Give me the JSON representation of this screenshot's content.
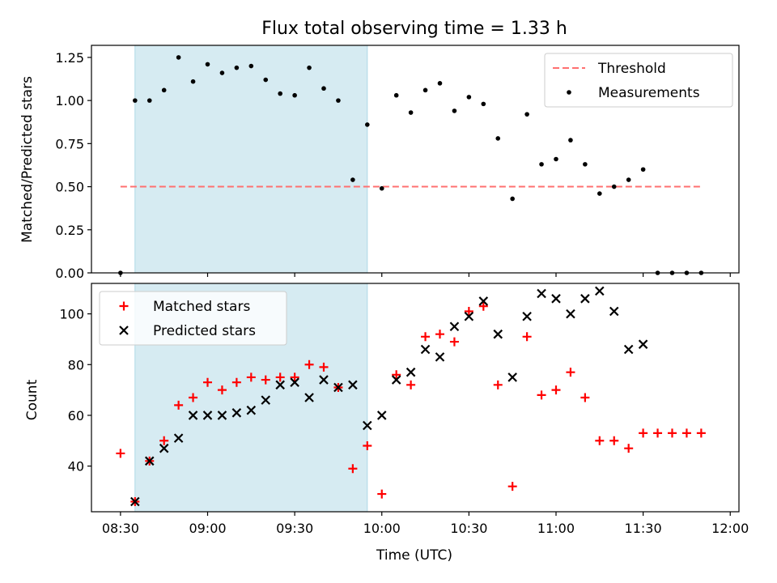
{
  "chart_data": {
    "title": "Flux total observing time = 1.33 h",
    "xlabel": "Time (UTC)",
    "x_tick_labels": [
      "08:30",
      "09:00",
      "09:30",
      "10:00",
      "10:30",
      "11:00",
      "11:30",
      "12:00"
    ],
    "x_ticks_minutes": [
      510,
      540,
      570,
      600,
      630,
      660,
      690,
      720
    ],
    "xlim_minutes": [
      500,
      723
    ],
    "x_unit": "minutes after 00:00 UTC",
    "shaded_span": {
      "start": "08:35",
      "end": "09:55",
      "start_minutes": 515,
      "end_minutes": 595,
      "color": "#add8e6"
    },
    "panels": [
      {
        "type": "scatter",
        "ylabel": "Matched/Predicted stars",
        "ylim": [
          0,
          1.32
        ],
        "y_ticks": [
          "0.00",
          "0.25",
          "0.50",
          "0.75",
          "1.00",
          "1.25"
        ],
        "legend_position": "top-right",
        "threshold": {
          "name": "Threshold",
          "value": 0.5,
          "x_start_minutes": 510,
          "x_end_minutes": 710,
          "color": "#ff7070"
        },
        "series": [
          {
            "name": "Measurements",
            "marker": "dot",
            "color": "#000000",
            "x": [
              510,
              515,
              520,
              525,
              530,
              535,
              540,
              545,
              550,
              555,
              560,
              565,
              570,
              575,
              580,
              585,
              590,
              595,
              600,
              605,
              610,
              615,
              620,
              625,
              630,
              635,
              640,
              645,
              650,
              655,
              660,
              665,
              670,
              675,
              680,
              685,
              690,
              695,
              700,
              705,
              710
            ],
            "y": [
              0.0,
              1.0,
              1.0,
              1.06,
              1.25,
              1.11,
              1.21,
              1.16,
              1.19,
              1.2,
              1.12,
              1.04,
              1.03,
              1.19,
              1.07,
              1.0,
              0.54,
              0.86,
              0.49,
              1.03,
              0.93,
              1.06,
              1.1,
              0.94,
              1.02,
              0.98,
              0.78,
              0.43,
              0.92,
              0.63,
              0.66,
              0.77,
              0.63,
              0.46,
              0.5,
              0.54,
              0.6,
              0.0,
              0.0,
              0.0,
              0.0
            ]
          }
        ]
      },
      {
        "type": "scatter",
        "ylabel": "Count",
        "ylim": [
          22,
          112
        ],
        "y_ticks": [
          "40",
          "60",
          "80",
          "100"
        ],
        "legend_position": "top-left",
        "series": [
          {
            "name": "Matched stars",
            "marker": "plus",
            "color": "#ff0000",
            "x": [
              510,
              515,
              520,
              525,
              530,
              535,
              540,
              545,
              550,
              555,
              560,
              565,
              570,
              575,
              580,
              585,
              590,
              595,
              600,
              605,
              610,
              615,
              620,
              625,
              630,
              635,
              640,
              645,
              650,
              655,
              660,
              665,
              670,
              675,
              680,
              685,
              690,
              695,
              700,
              705,
              710
            ],
            "y": [
              45,
              26,
              42,
              50,
              64,
              67,
              73,
              70,
              73,
              75,
              74,
              75,
              75,
              80,
              79,
              71,
              39,
              48,
              29,
              76,
              72,
              91,
              92,
              89,
              101,
              103,
              72,
              32,
              91,
              68,
              70,
              77,
              67,
              50,
              50,
              47,
              53,
              53,
              53,
              53,
              53
            ]
          },
          {
            "name": "Predicted stars",
            "marker": "x",
            "color": "#000000",
            "x": [
              515,
              520,
              525,
              530,
              535,
              540,
              545,
              550,
              555,
              560,
              565,
              570,
              575,
              580,
              585,
              590,
              595,
              600,
              605,
              610,
              615,
              620,
              625,
              630,
              635,
              640,
              645,
              650,
              655,
              660,
              665,
              670,
              675,
              680,
              685,
              690
            ],
            "y": [
              26,
              42,
              47,
              51,
              60,
              60,
              60,
              61,
              62,
              66,
              72,
              73,
              67,
              74,
              71,
              72,
              56,
              60,
              74,
              77,
              86,
              83,
              95,
              99,
              105,
              92,
              75,
              99,
              108,
              106,
              100,
              106,
              109,
              101,
              86,
              88
            ]
          }
        ]
      }
    ]
  }
}
